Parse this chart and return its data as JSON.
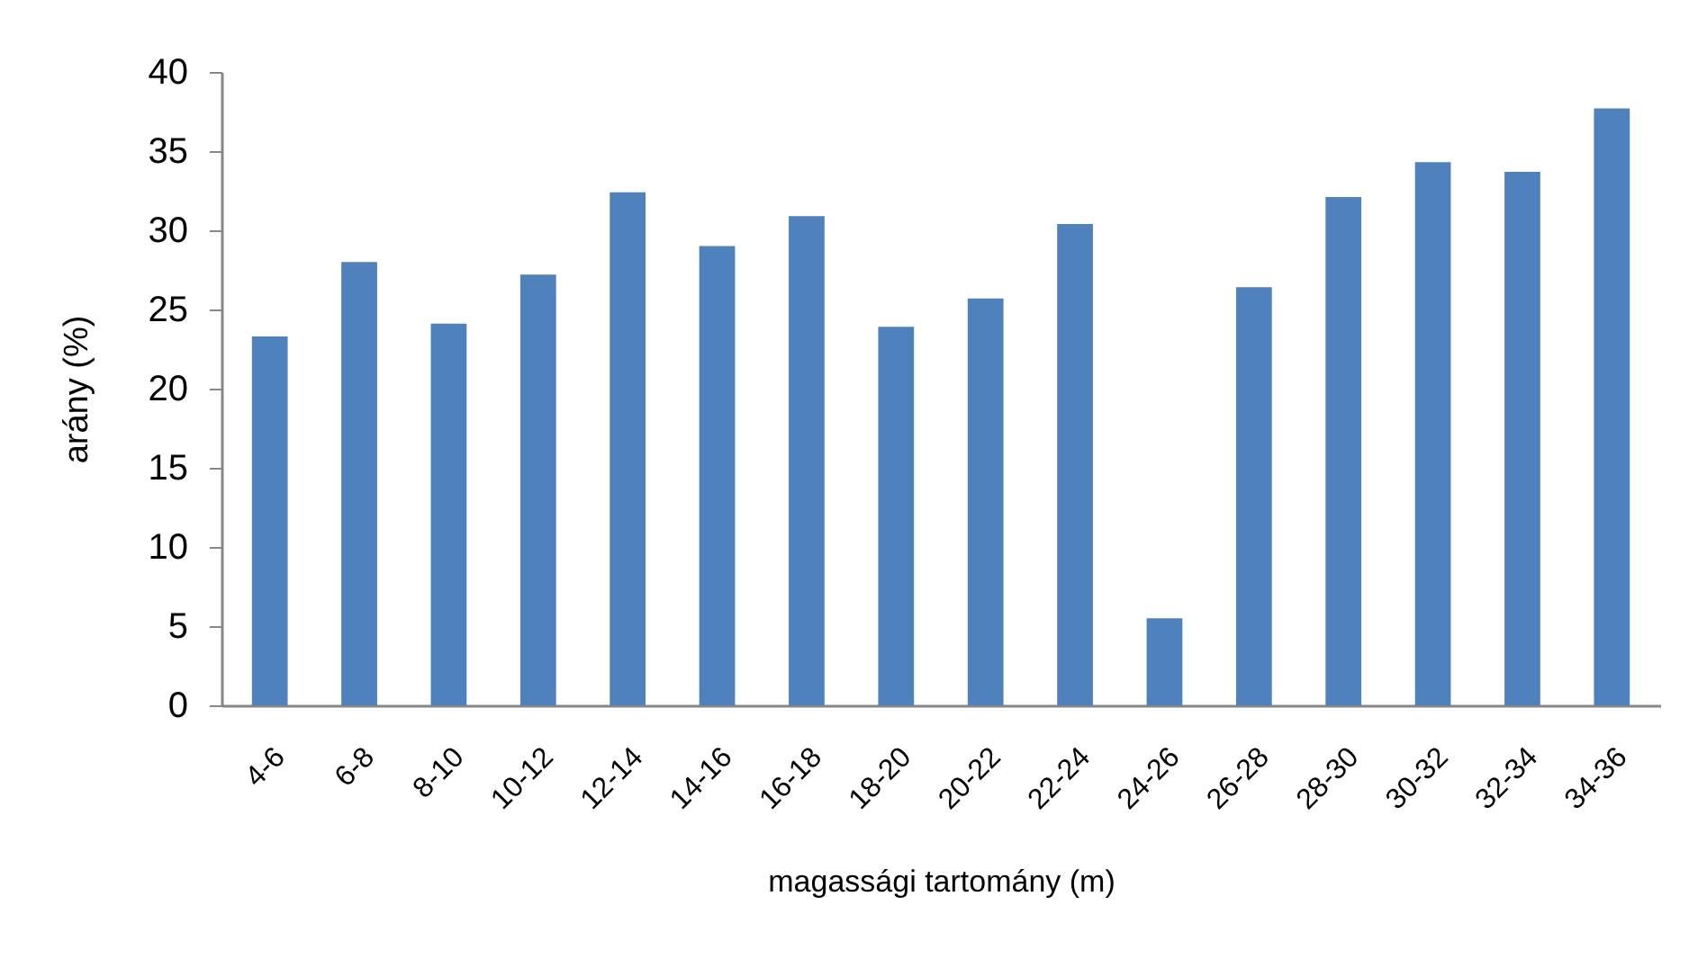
{
  "chart_data": {
    "type": "bar",
    "xlabel": "magassági tartomány (m)",
    "ylabel": "arány (%)",
    "categories": [
      "4-6",
      "6-8",
      "8-10",
      "10-12",
      "12-14",
      "14-16",
      "16-18",
      "18-20",
      "20-22",
      "22-24",
      "24-26",
      "26-28",
      "28-30",
      "30-32",
      "32-34",
      "34-36"
    ],
    "values": [
      23.3,
      28.0,
      24.1,
      27.2,
      32.4,
      29.0,
      30.9,
      23.9,
      25.7,
      30.4,
      5.5,
      26.4,
      32.1,
      34.3,
      33.7,
      37.7
    ],
    "color": "#4f81bd",
    "ylim": [
      0,
      40
    ],
    "yticks": [
      0,
      5,
      10,
      15,
      20,
      25,
      30,
      35,
      40
    ]
  }
}
